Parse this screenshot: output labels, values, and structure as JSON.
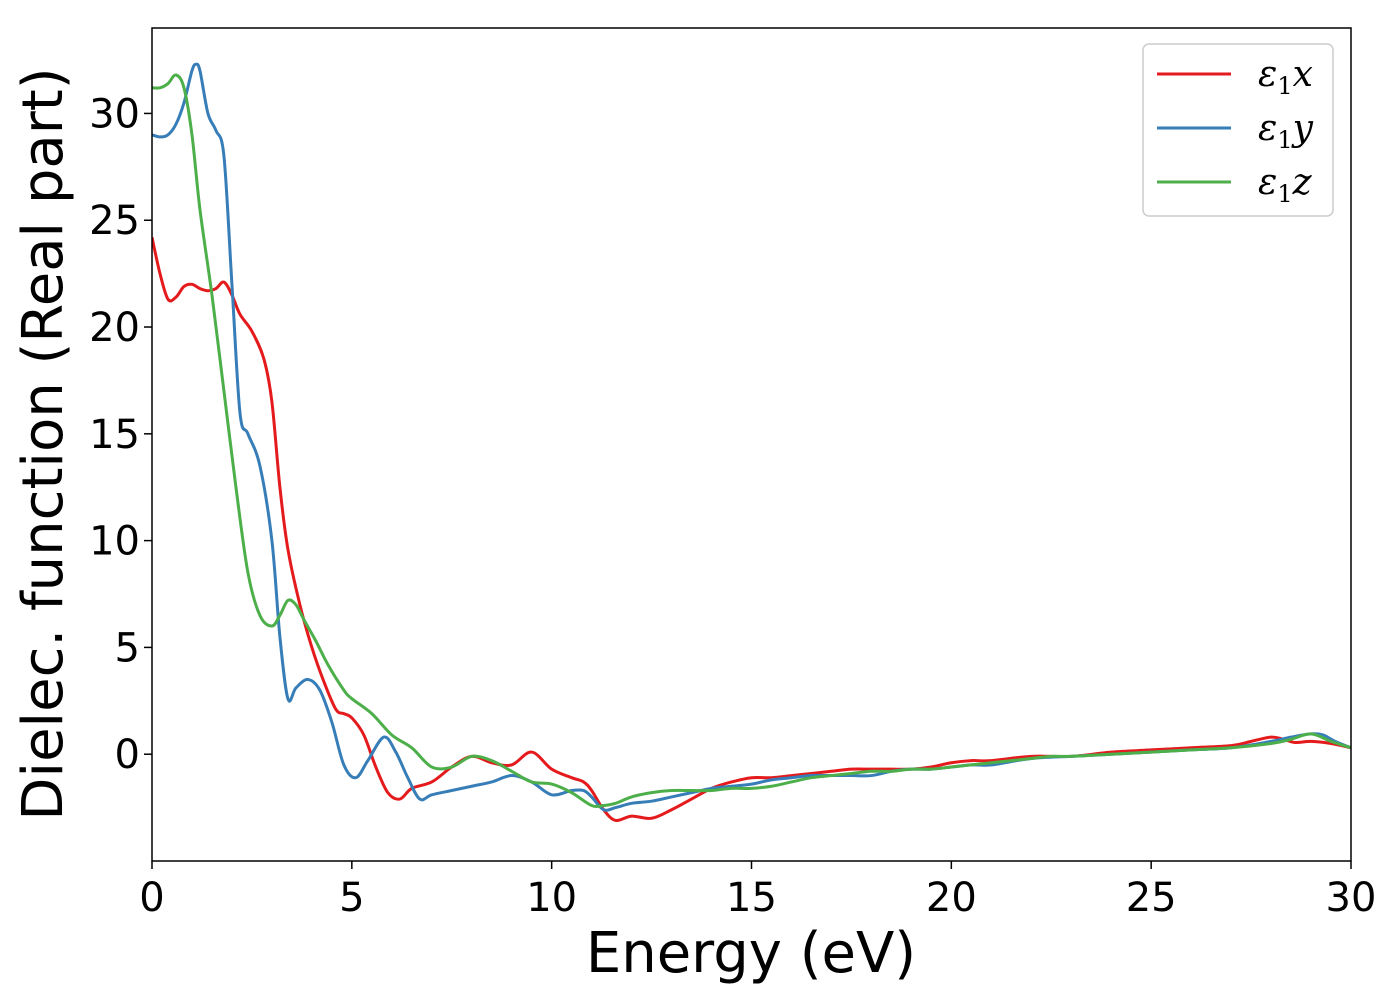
{
  "chart_data": {
    "type": "line",
    "xlabel": "Energy (eV)",
    "ylabel": "Dielec. function (Real part)",
    "xlim": [
      0,
      30
    ],
    "ylim": [
      -5,
      34
    ],
    "xticks": [
      "0",
      "5",
      "10",
      "15",
      "20",
      "25",
      "30"
    ],
    "yticks": [
      "0",
      "5",
      "10",
      "15",
      "20",
      "25",
      "30"
    ],
    "grid": false,
    "legend": "top-right",
    "series": [
      {
        "name": "ε₁x",
        "legend_base": "ε",
        "legend_sub": "1",
        "legend_suffix": "x",
        "color": "#e41a1c",
        "x": [
          0,
          0.2,
          0.4,
          0.6,
          0.8,
          1.0,
          1.2,
          1.4,
          1.6,
          1.8,
          2.0,
          2.2,
          2.5,
          2.8,
          3.0,
          3.2,
          3.4,
          3.7,
          4.0,
          4.3,
          4.6,
          4.8,
          5.0,
          5.3,
          5.6,
          5.9,
          6.2,
          6.5,
          7.0,
          7.5,
          8.0,
          8.5,
          9.0,
          9.5,
          10.0,
          10.5,
          10.8,
          11.0,
          11.3,
          11.6,
          12.0,
          12.5,
          13.0,
          13.5,
          14.0,
          14.5,
          15.0,
          15.5,
          16.0,
          16.5,
          17.0,
          17.5,
          18.0,
          18.5,
          19.0,
          19.5,
          20.0,
          20.5,
          21.0,
          22.0,
          23.0,
          24.0,
          25.0,
          26.0,
          27.0,
          27.5,
          28.0,
          28.3,
          28.6,
          29.0,
          29.5,
          30.0
        ],
        "values": [
          24.2,
          22.5,
          21.3,
          21.4,
          21.9,
          22.0,
          21.8,
          21.7,
          21.8,
          22.1,
          21.5,
          20.6,
          19.8,
          18.5,
          16.5,
          12.5,
          9.6,
          7.0,
          5.0,
          3.4,
          2.1,
          1.9,
          1.7,
          0.9,
          -0.6,
          -1.8,
          -2.1,
          -1.6,
          -1.3,
          -0.6,
          -0.1,
          -0.4,
          -0.5,
          0.1,
          -0.7,
          -1.1,
          -1.3,
          -1.7,
          -2.6,
          -3.1,
          -2.9,
          -3.0,
          -2.6,
          -2.1,
          -1.6,
          -1.3,
          -1.1,
          -1.1,
          -1.0,
          -0.9,
          -0.8,
          -0.7,
          -0.7,
          -0.7,
          -0.7,
          -0.6,
          -0.4,
          -0.3,
          -0.3,
          -0.1,
          -0.1,
          0.1,
          0.2,
          0.3,
          0.4,
          0.6,
          0.8,
          0.7,
          0.55,
          0.6,
          0.5,
          0.3
        ]
      },
      {
        "name": "ε₁y",
        "legend_base": "ε",
        "legend_sub": "1",
        "legend_suffix": "y",
        "color": "#377eb8",
        "x": [
          0,
          0.2,
          0.4,
          0.6,
          0.8,
          1.0,
          1.1,
          1.2,
          1.4,
          1.6,
          1.8,
          2.0,
          2.2,
          2.4,
          2.7,
          3.0,
          3.2,
          3.4,
          3.6,
          3.9,
          4.2,
          4.5,
          4.8,
          5.1,
          5.4,
          5.8,
          6.1,
          6.4,
          6.7,
          7.0,
          7.5,
          8.0,
          8.5,
          9.0,
          9.5,
          10.0,
          10.5,
          10.8,
          11.0,
          11.3,
          11.6,
          12.0,
          12.5,
          13.0,
          13.5,
          14.0,
          14.5,
          15.0,
          15.5,
          16.0,
          16.5,
          17.0,
          17.5,
          18.0,
          18.5,
          19.0,
          19.5,
          20.0,
          20.5,
          21.0,
          22.0,
          23.0,
          24.0,
          25.0,
          26.0,
          27.0,
          28.0,
          28.5,
          29.0,
          29.3,
          29.6,
          30.0
        ],
        "values": [
          29.0,
          28.9,
          29.0,
          29.5,
          30.5,
          32.0,
          32.3,
          32.0,
          30.0,
          29.2,
          28.0,
          22.0,
          16.0,
          15.0,
          13.5,
          10.0,
          5.5,
          2.6,
          3.1,
          3.5,
          3.0,
          1.5,
          -0.5,
          -1.1,
          -0.3,
          0.8,
          0.1,
          -1.1,
          -2.1,
          -1.9,
          -1.7,
          -1.5,
          -1.3,
          -1.0,
          -1.3,
          -1.9,
          -1.7,
          -1.7,
          -2.0,
          -2.6,
          -2.5,
          -2.3,
          -2.2,
          -2.0,
          -1.8,
          -1.6,
          -1.5,
          -1.4,
          -1.2,
          -1.1,
          -1.0,
          -1.0,
          -1.0,
          -1.0,
          -0.8,
          -0.7,
          -0.7,
          -0.6,
          -0.5,
          -0.5,
          -0.2,
          -0.1,
          0.0,
          0.1,
          0.2,
          0.3,
          0.6,
          0.8,
          0.95,
          0.9,
          0.6,
          0.3
        ]
      },
      {
        "name": "ε₁z",
        "legend_base": "ε",
        "legend_sub": "1",
        "legend_suffix": "z",
        "color": "#4daf4a",
        "x": [
          0,
          0.2,
          0.4,
          0.6,
          0.8,
          1.0,
          1.2,
          1.5,
          1.8,
          2.1,
          2.4,
          2.7,
          3.0,
          3.2,
          3.4,
          3.6,
          3.8,
          4.1,
          4.4,
          4.8,
          5.0,
          5.5,
          6.0,
          6.5,
          7.0,
          7.5,
          8.0,
          8.5,
          9.0,
          9.5,
          10.0,
          10.5,
          11.0,
          11.3,
          11.6,
          12.0,
          12.5,
          13.0,
          13.5,
          14.0,
          14.5,
          15.0,
          15.5,
          16.0,
          16.5,
          17.0,
          17.5,
          18.0,
          18.5,
          19.0,
          19.5,
          20.0,
          20.5,
          21.0,
          22.0,
          22.5,
          23.0,
          24.0,
          25.0,
          26.0,
          27.0,
          28.0,
          28.5,
          29.0,
          29.5,
          30.0
        ],
        "values": [
          31.2,
          31.2,
          31.4,
          31.8,
          31.2,
          29.0,
          25.5,
          21.5,
          17.0,
          12.5,
          8.5,
          6.5,
          6.0,
          6.5,
          7.2,
          7.0,
          6.3,
          5.3,
          4.2,
          3.0,
          2.6,
          1.9,
          0.9,
          0.3,
          -0.6,
          -0.6,
          -0.1,
          -0.3,
          -0.8,
          -1.3,
          -1.4,
          -1.8,
          -2.4,
          -2.4,
          -2.3,
          -2.0,
          -1.8,
          -1.7,
          -1.7,
          -1.7,
          -1.6,
          -1.6,
          -1.5,
          -1.3,
          -1.1,
          -1.0,
          -0.9,
          -0.8,
          -0.8,
          -0.7,
          -0.7,
          -0.6,
          -0.5,
          -0.4,
          -0.2,
          -0.1,
          -0.1,
          0.0,
          0.1,
          0.2,
          0.3,
          0.5,
          0.7,
          0.95,
          0.6,
          0.3
        ]
      }
    ]
  }
}
